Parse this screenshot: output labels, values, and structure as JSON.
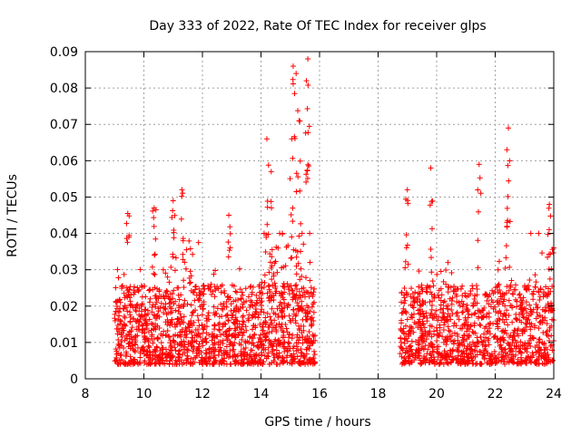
{
  "chart_data": {
    "type": "scatter",
    "title": "Day 333 of 2022, Rate Of TEC Index for receiver glps",
    "xlabel": "GPS time / hours",
    "ylabel": "ROTI / TECUs",
    "xlim": [
      8,
      24
    ],
    "ylim": [
      0,
      0.09
    ],
    "x_ticks": [
      8,
      10,
      12,
      14,
      16,
      18,
      20,
      22,
      24
    ],
    "x_tick_labels": [
      "8",
      "10",
      "12",
      "14",
      "16",
      "18",
      "20",
      "22",
      "24"
    ],
    "y_ticks": [
      0,
      0.01,
      0.02,
      0.03,
      0.04,
      0.05,
      0.06,
      0.07,
      0.08,
      0.09
    ],
    "y_tick_labels": [
      "0",
      "0.01",
      "0.02",
      "0.03",
      "0.04",
      "0.05",
      "0.06",
      "0.07",
      "0.08",
      "0.09"
    ],
    "grid": true,
    "marker": "+",
    "color": "#ff0000",
    "series": [
      {
        "name": "ROTI",
        "segments": [
          {
            "x_start": 9.0,
            "x_end": 15.85
          },
          {
            "x_start": 18.75,
            "x_end": 24.0
          }
        ],
        "notable_points": [
          {
            "x": 9.45,
            "y": 0.0455
          },
          {
            "x": 10.35,
            "y": 0.047
          },
          {
            "x": 11.0,
            "y": 0.049
          },
          {
            "x": 11.3,
            "y": 0.052
          },
          {
            "x": 12.9,
            "y": 0.045
          },
          {
            "x": 14.2,
            "y": 0.066
          },
          {
            "x": 14.35,
            "y": 0.057
          },
          {
            "x": 15.1,
            "y": 0.086
          },
          {
            "x": 15.2,
            "y": 0.084
          },
          {
            "x": 15.6,
            "y": 0.088
          },
          {
            "x": 15.55,
            "y": 0.082
          },
          {
            "x": 15.3,
            "y": 0.071
          },
          {
            "x": 15.05,
            "y": 0.066
          },
          {
            "x": 19.0,
            "y": 0.052
          },
          {
            "x": 19.8,
            "y": 0.058
          },
          {
            "x": 21.45,
            "y": 0.059
          },
          {
            "x": 22.45,
            "y": 0.069
          },
          {
            "x": 22.4,
            "y": 0.063
          },
          {
            "x": 23.85,
            "y": 0.048
          },
          {
            "x": 24.0,
            "y": 0.036
          }
        ]
      }
    ]
  }
}
